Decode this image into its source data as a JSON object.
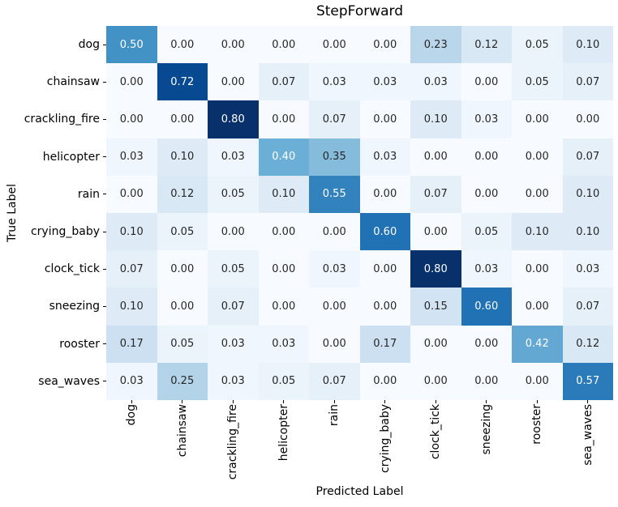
{
  "chart_data": {
    "type": "heatmap",
    "title": "StepForward",
    "xlabel": "Predicted Label",
    "ylabel": "True Label",
    "categories": [
      "dog",
      "chainsaw",
      "crackling_fire",
      "helicopter",
      "rain",
      "crying_baby",
      "clock_tick",
      "sneezing",
      "rooster",
      "sea_waves"
    ],
    "rows": [
      {
        "label": "dog",
        "values": [
          0.5,
          0.0,
          0.0,
          0.0,
          0.0,
          0.0,
          0.23,
          0.12,
          0.05,
          0.1
        ]
      },
      {
        "label": "chainsaw",
        "values": [
          0.0,
          0.72,
          0.0,
          0.07,
          0.03,
          0.03,
          0.03,
          0.0,
          0.05,
          0.07
        ]
      },
      {
        "label": "crackling_fire",
        "values": [
          0.0,
          0.0,
          0.8,
          0.0,
          0.07,
          0.0,
          0.1,
          0.03,
          0.0,
          0.0
        ]
      },
      {
        "label": "helicopter",
        "values": [
          0.03,
          0.1,
          0.03,
          0.4,
          0.35,
          0.03,
          0.0,
          0.0,
          0.0,
          0.07
        ]
      },
      {
        "label": "rain",
        "values": [
          0.0,
          0.12,
          0.05,
          0.1,
          0.55,
          0.0,
          0.07,
          0.0,
          0.0,
          0.1
        ]
      },
      {
        "label": "crying_baby",
        "values": [
          0.1,
          0.05,
          0.0,
          0.0,
          0.0,
          0.6,
          0.0,
          0.05,
          0.1,
          0.1
        ]
      },
      {
        "label": "clock_tick",
        "values": [
          0.07,
          0.0,
          0.05,
          0.0,
          0.03,
          0.0,
          0.8,
          0.03,
          0.0,
          0.03
        ]
      },
      {
        "label": "sneezing",
        "values": [
          0.1,
          0.0,
          0.07,
          0.0,
          0.0,
          0.0,
          0.15,
          0.6,
          0.0,
          0.07
        ]
      },
      {
        "label": "rooster",
        "values": [
          0.17,
          0.05,
          0.03,
          0.03,
          0.0,
          0.17,
          0.0,
          0.0,
          0.42,
          0.12
        ]
      },
      {
        "label": "sea_waves",
        "values": [
          0.03,
          0.25,
          0.03,
          0.05,
          0.07,
          0.0,
          0.0,
          0.0,
          0.0,
          0.57
        ]
      }
    ],
    "value_decimals": 2,
    "vmin": 0.0,
    "vmax": 0.8,
    "colormap": "Blues",
    "colormap_anchors": [
      "#f7fbff",
      "#deebf7",
      "#c6dbef",
      "#9ecae1",
      "#6baed6",
      "#4292c6",
      "#2171b5",
      "#08519c",
      "#08306b"
    ],
    "annotation_dark_text": "#262626",
    "annotation_light_text": "#ffffff",
    "luminance_threshold": 0.408,
    "grid": false,
    "legend": "none",
    "background": "#ffffff"
  }
}
